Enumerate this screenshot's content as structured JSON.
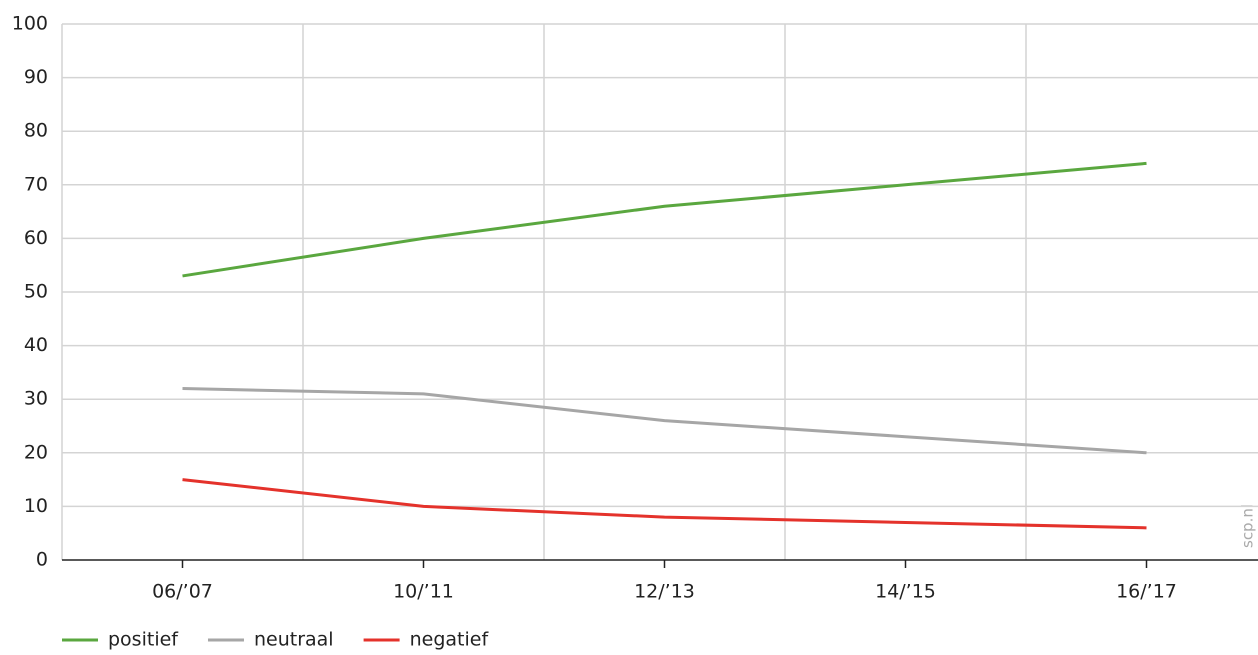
{
  "chart_data": {
    "type": "line",
    "categories": [
      "06/’07",
      "10/’11",
      "12/’13",
      "14/’15",
      "16/’17"
    ],
    "series": [
      {
        "name": "positief",
        "color": "#5aa73f",
        "values": [
          53,
          60,
          66,
          70,
          74
        ]
      },
      {
        "name": "neutraal",
        "color": "#a6a6a6",
        "values": [
          32,
          31,
          26,
          23,
          20
        ]
      },
      {
        "name": "negatief",
        "color": "#e4322b",
        "values": [
          15,
          10,
          8,
          7,
          6
        ]
      }
    ],
    "ylim": [
      0,
      100
    ],
    "yticks": [
      0,
      10,
      20,
      30,
      40,
      50,
      60,
      70,
      80,
      90,
      100
    ],
    "grid": true,
    "legend": "bottom-left",
    "watermark": "scp.nl"
  }
}
